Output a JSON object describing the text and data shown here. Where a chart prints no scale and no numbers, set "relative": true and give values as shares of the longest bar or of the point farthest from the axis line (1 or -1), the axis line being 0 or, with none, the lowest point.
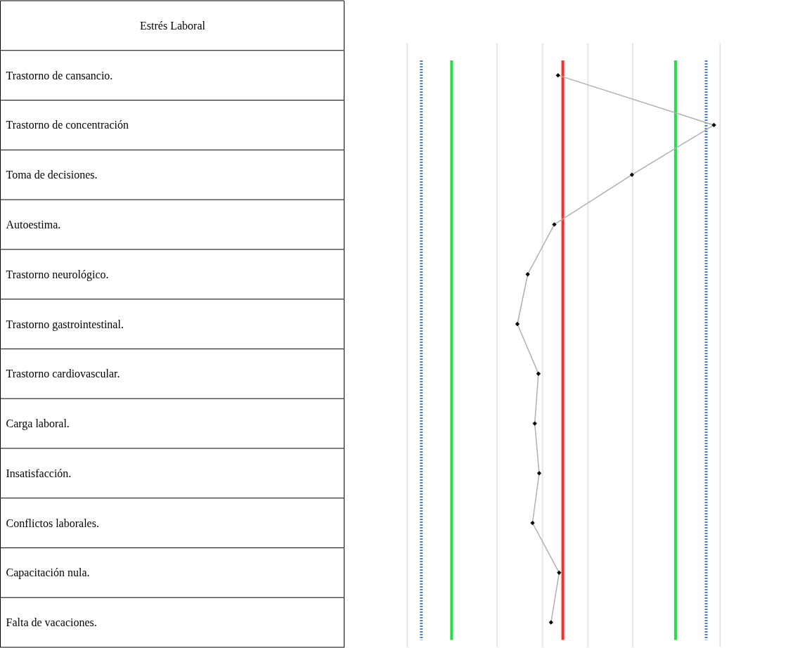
{
  "chart_data": {
    "type": "line",
    "orientation": "horizontal",
    "relative": true,
    "ylabel": "Estrés Laboral",
    "categories": [
      "Trastorno de cansancio.",
      "Trastorno de concentración",
      "Toma de decisiones.",
      "Autoestima.",
      "Trastorno neurológico.",
      "Trastorno gastrointestinal.",
      "Trastorno cardiovascular.",
      "Carga laboral.",
      "Insatisfacción.",
      "Conflictos laborales.",
      "Capacitación nula.",
      "Falta de vacaciones."
    ],
    "series": [
      {
        "color": "#b0b0b0",
        "values": [
          0.578,
          1,
          0.778,
          0.568,
          0.496,
          0.468,
          0.525,
          0.515,
          0.527,
          0.509,
          0.581,
          0.559
        ]
      }
    ],
    "marker": "diamond",
    "line_style": "solid",
    "grid": true,
    "ref_lines": [
      {
        "axis": "x",
        "value": 0.17,
        "color": "#e6e6e6",
        "line_style": "solid"
      },
      {
        "axis": "x",
        "value": 0.413,
        "color": "#e6e6e6",
        "line_style": "solid"
      },
      {
        "axis": "x",
        "value": 0.536,
        "color": "#e6e6e6",
        "line_style": "solid"
      },
      {
        "axis": "x",
        "value": 0.659,
        "color": "#e6e6e6",
        "line_style": "solid"
      },
      {
        "axis": "x",
        "value": 0.78,
        "color": "#e6e6e6",
        "line_style": "solid"
      },
      {
        "axis": "x",
        "value": 1.017,
        "color": "#e6e6e6",
        "line_style": "solid"
      },
      {
        "axis": "x",
        "value": 0.208,
        "color": "#4a7fd4",
        "line_style": "dotted"
      },
      {
        "axis": "x",
        "value": 0.29,
        "color": "#22dd44",
        "line_style": "solid"
      },
      {
        "axis": "x",
        "value": 0.591,
        "color": "#ff2a2a",
        "line_style": "solid"
      },
      {
        "axis": "x",
        "value": 0.896,
        "color": "#22dd44",
        "line_style": "solid"
      },
      {
        "axis": "x",
        "value": 0.979,
        "color": "#4a7fd4",
        "line_style": "dotted"
      }
    ]
  }
}
